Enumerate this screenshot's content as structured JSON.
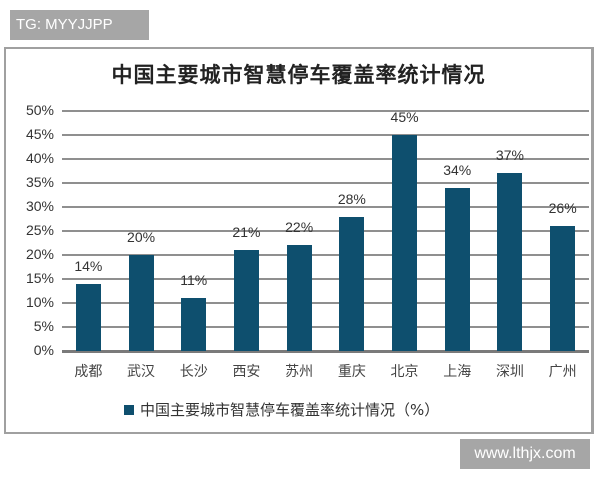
{
  "watermarks": {
    "top": "TG: MYYJJPP",
    "bottom": "www.lthjx.com"
  },
  "chart_data": {
    "type": "bar",
    "title": "中国主要城市智慧停车覆盖率统计情况",
    "categories": [
      "成都",
      "武汉",
      "长沙",
      "西安",
      "苏州",
      "重庆",
      "北京",
      "上海",
      "深圳",
      "广州"
    ],
    "series": [
      {
        "name": "中国主要城市智慧停车覆盖率统计情况（%）",
        "values": [
          14,
          20,
          11,
          21,
          22,
          28,
          45,
          34,
          37,
          26
        ],
        "labels": [
          "14%",
          "20%",
          "11%",
          "21%",
          "22%",
          "28%",
          "45%",
          "34%",
          "37%",
          "26%"
        ],
        "color": "#0e4f6e"
      }
    ],
    "xlabel": "",
    "ylabel": "",
    "ylim": [
      0,
      50
    ],
    "yticks": [
      "0%",
      "5%",
      "10%",
      "15%",
      "20%",
      "25%",
      "30%",
      "35%",
      "40%",
      "45%",
      "50%"
    ],
    "grid": true,
    "legend_position": "bottom"
  }
}
